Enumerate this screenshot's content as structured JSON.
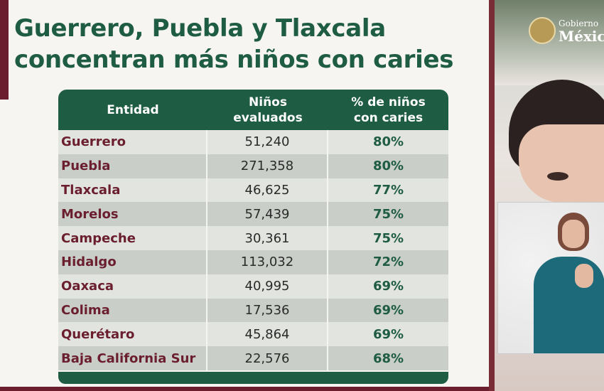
{
  "title": {
    "line1": "Guerrero, Puebla y Tlaxcala",
    "line2": "concentran más niños con caries"
  },
  "table": {
    "headers": {
      "entidad": "Entidad",
      "ninos": "Niños evaluados",
      "pct": "% de niños con caries"
    },
    "rows": [
      {
        "entidad": "Guerrero",
        "ninos": "51,240",
        "pct": "80%"
      },
      {
        "entidad": "Puebla",
        "ninos": "271,358",
        "pct": "80%"
      },
      {
        "entidad": "Tlaxcala",
        "ninos": "46,625",
        "pct": "77%"
      },
      {
        "entidad": "Morelos",
        "ninos": "57,439",
        "pct": "75%"
      },
      {
        "entidad": "Campeche",
        "ninos": "30,361",
        "pct": "75%"
      },
      {
        "entidad": "Hidalgo",
        "ninos": "113,032",
        "pct": "72%"
      },
      {
        "entidad": "Oaxaca",
        "ninos": "40,995",
        "pct": "69%"
      },
      {
        "entidad": "Colima",
        "ninos": "17,536",
        "pct": "69%"
      },
      {
        "entidad": "Querétaro",
        "ninos": "45,864",
        "pct": "69%"
      },
      {
        "entidad": "Baja California Sur",
        "ninos": "22,576",
        "pct": "68%"
      }
    ]
  },
  "logo": {
    "line1": "Gobierno",
    "line2": "México",
    "icon": "coat-of-arms-icon"
  },
  "colors": {
    "brand_green": "#1f5c44",
    "brand_maroon": "#6b1f2e"
  }
}
